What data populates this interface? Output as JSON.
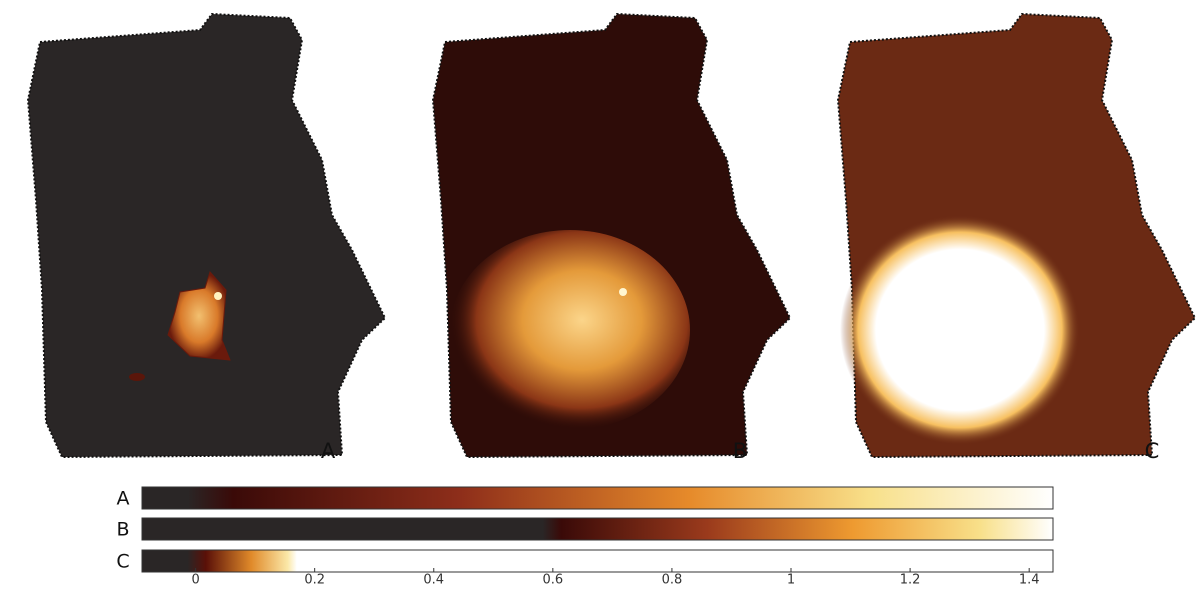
{
  "panels": [
    {
      "label": "A"
    },
    {
      "label": "B"
    },
    {
      "label": "C"
    }
  ],
  "colorbars": {
    "labels": [
      "A",
      "B",
      "C"
    ],
    "xlim": [
      -0.09,
      1.44
    ],
    "xticks": [
      0,
      0.2,
      0.4,
      0.6,
      0.8,
      1,
      1.2,
      1.4
    ]
  }
}
